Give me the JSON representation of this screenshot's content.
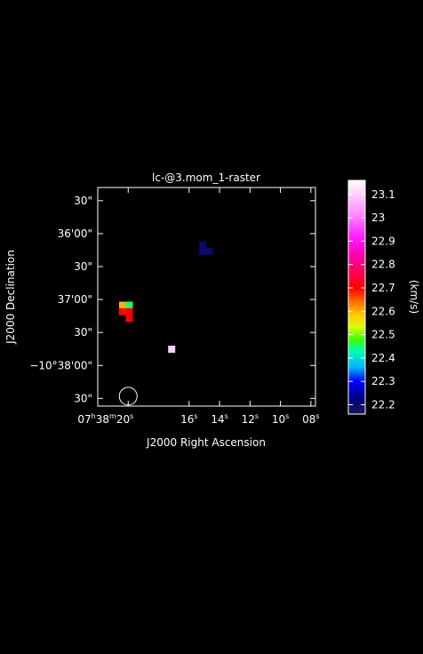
{
  "chart_data": {
    "type": "heatmap",
    "title": "lc-@3.mom_1-raster",
    "xlabel": "J2000 Right Ascension",
    "ylabel": "J2000 Declination",
    "colorbar_label": "(km/s)",
    "background": "#000000",
    "foreground": "#ffffff",
    "x_ticks": [
      {
        "sec": 20,
        "h": "07",
        "m": "38",
        "s": "20"
      },
      {
        "sec": 16,
        "s": "16"
      },
      {
        "sec": 14,
        "s": "14"
      },
      {
        "sec": 12,
        "s": "12"
      },
      {
        "sec": 10,
        "s": "10"
      },
      {
        "sec": 8,
        "s": "08"
      }
    ],
    "x_unit_h": "h",
    "x_unit_m": "m",
    "x_unit_s": "s",
    "y_ticks": [
      {
        "arcsec": -2130,
        "label": "30\""
      },
      {
        "arcsec": -2160,
        "label": "36'00\""
      },
      {
        "arcsec": -2190,
        "label": "30\""
      },
      {
        "arcsec": -2220,
        "label": "37'00\""
      },
      {
        "arcsec": -2250,
        "label": "30\""
      },
      {
        "arcsec": -2280,
        "label": "−10°38'00\""
      },
      {
        "arcsec": -2310,
        "label": "30\""
      }
    ],
    "x_range_sec": [
      22.0,
      7.7
    ],
    "y_range_arcsec": [
      -2317,
      -2118
    ],
    "pixels": [
      {
        "ra": 15.12,
        "dec": -2170.0,
        "value": 22.2
      },
      {
        "ra": 15.12,
        "dec": -2176.0,
        "value": 22.2
      },
      {
        "ra": 14.68,
        "dec": -2176.0,
        "value": 22.2
      },
      {
        "ra": 20.38,
        "dec": -2225.0,
        "value": 22.6
      },
      {
        "ra": 19.94,
        "dec": -2225.0,
        "value": 22.45
      },
      {
        "ra": 20.38,
        "dec": -2231.0,
        "value": 22.7
      },
      {
        "ra": 19.94,
        "dec": -2231.0,
        "value": 22.7
      },
      {
        "ra": 19.94,
        "dec": -2237.0,
        "value": 22.7
      },
      {
        "ra": 17.16,
        "dec": -2265.0,
        "value": 23.1
      }
    ],
    "beam": {
      "ra": 20.0,
      "dec": -2308.0
    },
    "colorbar": {
      "min": 22.16,
      "max": 23.16,
      "ticks": [
        22.2,
        22.3,
        22.4,
        22.5,
        22.6,
        22.7,
        22.8,
        22.9,
        23,
        23.1
      ],
      "tick_labels": [
        "22.2",
        "22.3",
        "22.4",
        "22.5",
        "22.6",
        "22.7",
        "22.8",
        "22.9",
        "23",
        "23.1"
      ],
      "stops": [
        {
          "v": 22.16,
          "color": "#1a1a55"
        },
        {
          "v": 22.22,
          "color": "#00007a"
        },
        {
          "v": 22.3,
          "color": "#0000ff"
        },
        {
          "v": 22.36,
          "color": "#00b4ff"
        },
        {
          "v": 22.43,
          "color": "#00ffb4"
        },
        {
          "v": 22.48,
          "color": "#40ff00"
        },
        {
          "v": 22.53,
          "color": "#d4ff00"
        },
        {
          "v": 22.58,
          "color": "#ffd000"
        },
        {
          "v": 22.63,
          "color": "#ff8000"
        },
        {
          "v": 22.7,
          "color": "#ff0000"
        },
        {
          "v": 22.76,
          "color": "#ff0050"
        },
        {
          "v": 22.84,
          "color": "#ff00b0"
        },
        {
          "v": 22.92,
          "color": "#ff20ff"
        },
        {
          "v": 23.02,
          "color": "#ff90ff"
        },
        {
          "v": 23.16,
          "color": "#ffffff"
        }
      ]
    }
  }
}
